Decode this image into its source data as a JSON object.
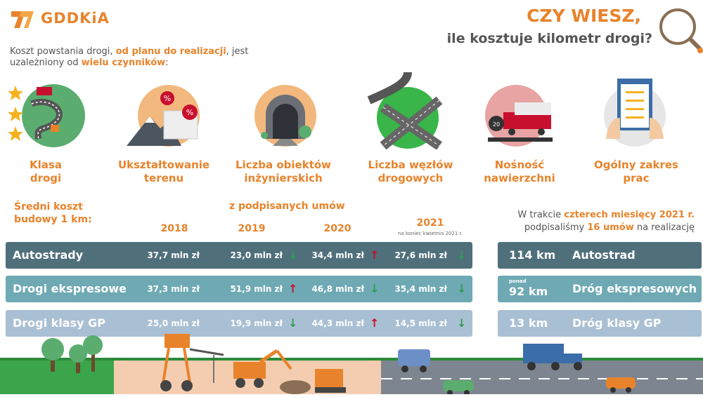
{
  "brand": {
    "logo_text": "GDDKiA",
    "accent": "#e8832b"
  },
  "header": {
    "question_line1": "CZY WIESZ,",
    "question_line2": "ile kosztuje kilometr drogi?"
  },
  "intro": {
    "part1": "Koszt powstania drogi, ",
    "part2": "od planu do realizacji",
    "part3": ", jest uzależniony od ",
    "part4": "wielu czynników",
    "part5": ":"
  },
  "factors": [
    {
      "line1": "Klasa",
      "line2": "drogi",
      "icon": "road-class-icon"
    },
    {
      "line1": "Ukształtowanie",
      "line2": "terenu",
      "icon": "terrain-icon"
    },
    {
      "line1": "Liczba obiektów",
      "line2": "inżynierskich",
      "icon": "tunnel-icon"
    },
    {
      "line1": "Liczba węzłów",
      "line2": "drogowych",
      "icon": "interchange-icon"
    },
    {
      "line1": "Nośność",
      "line2": "nawierzchni",
      "icon": "truck-weight-icon"
    },
    {
      "line1": "Ogólny zakres",
      "line2": "prac",
      "icon": "clipboard-icon"
    }
  ],
  "table": {
    "avg_label_line1": "Średni koszt",
    "avg_label_line2": "budowy 1 km:",
    "contracts_label": "z podpisanych umów",
    "years": [
      "2018",
      "2019",
      "2020",
      "2021"
    ],
    "year_2021_note": "na koniec kwietnia 2021 r.",
    "rows": [
      {
        "name": "Autostrady",
        "color": "#4f6f7b",
        "v2018": "37,7 mln zł",
        "v2019": "23,0 mln zł",
        "t2019": "↓",
        "v2020": "34,4 mln zł",
        "t2020": "↑",
        "v2021": "27,6 mln zł",
        "t2021": "↓"
      },
      {
        "name": "Drogi ekspresowe",
        "color": "#6ea9b4",
        "v2018": "37,3 mln zł",
        "v2019": "51,9 mln zł",
        "t2019": "↑",
        "v2020": "46,8 mln zł",
        "t2020": "↓",
        "v2021": "35,4 mln zł",
        "t2021": "↓"
      },
      {
        "name": "Drogi klasy GP",
        "color": "#a9bfd3",
        "v2018": "25,0 mln zł",
        "v2019": "19,9 mln zł",
        "t2019": "↓",
        "v2020": "44,3 mln zł",
        "t2020": "↑",
        "v2021": "14,5 mln zł",
        "t2021": "↓"
      }
    ]
  },
  "summary": {
    "note_part1": "W trakcie ",
    "note_part2": "czterech miesięcy 2021 r.",
    "note_part3": "podpisaliśmy ",
    "note_part4": "16 umów",
    "note_part5": " na realizację",
    "rows": [
      {
        "prefix": "",
        "value": "114 km",
        "name": "Autostrad",
        "color": "#4f6f7b"
      },
      {
        "prefix": "ponad",
        "value": "92 km",
        "name": "Dróg ekspresowych",
        "color": "#6ea9b4"
      },
      {
        "prefix": "",
        "value": "13 km",
        "name": "Dróg klasy GP",
        "color": "#a9bfd3"
      }
    ]
  }
}
